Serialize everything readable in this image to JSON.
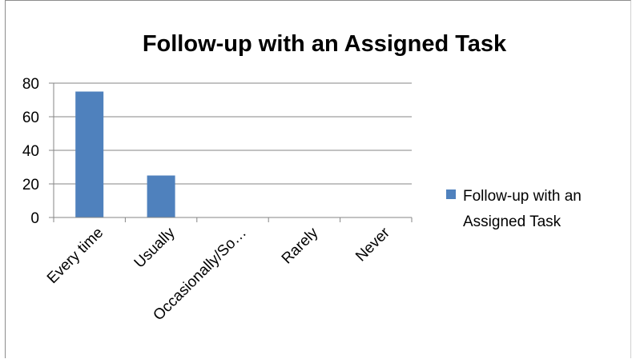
{
  "chart_data": {
    "type": "bar",
    "title": "Follow-up with an Assigned Task",
    "categories": [
      "Every time",
      "Usually",
      "Occasionally/So…",
      "Rarely",
      "Never"
    ],
    "series": [
      {
        "name": "Follow-up with an Assigned Task",
        "values": [
          75,
          25,
          0,
          0,
          0
        ],
        "color": "#4f81bd"
      }
    ],
    "xlabel": "",
    "ylabel": "",
    "ylim": [
      0,
      80
    ],
    "yticks": [
      0,
      20,
      40,
      60,
      80
    ],
    "grid": true,
    "legend_position": "right",
    "legend_lines": [
      "Follow-up with an",
      "Assigned Task"
    ]
  }
}
